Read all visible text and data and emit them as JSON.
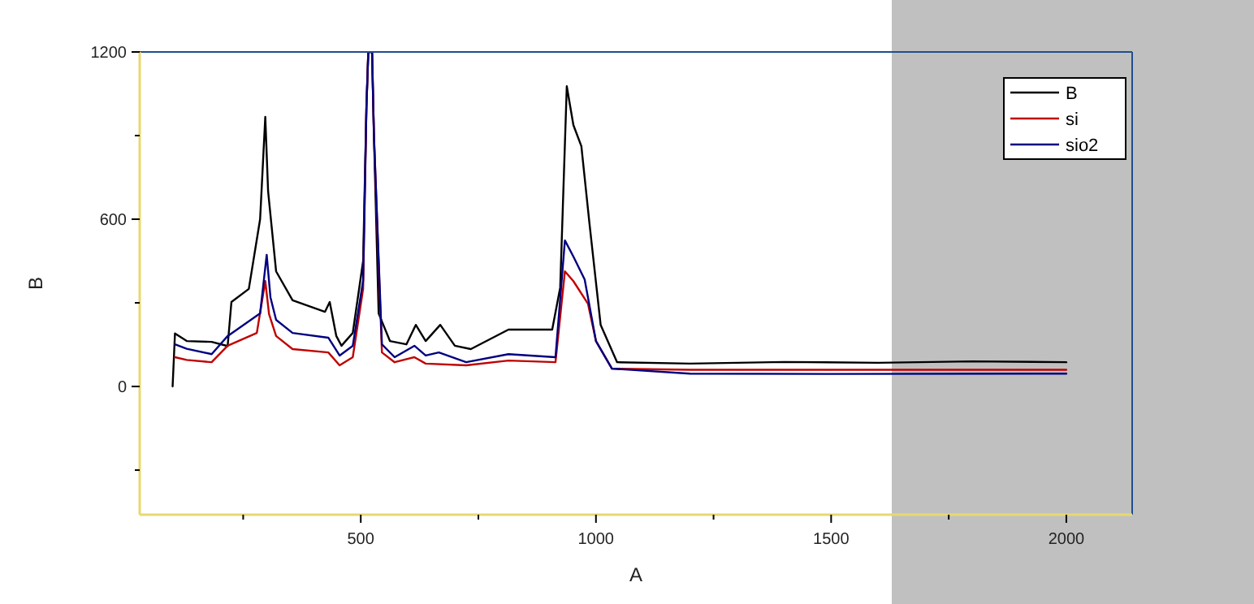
{
  "chart_data": {
    "type": "line",
    "xlabel": "A",
    "ylabel": "B",
    "xlim": [
      30,
      2140
    ],
    "ylim": [
      -460,
      1200
    ],
    "xticks": [
      {
        "value": 250,
        "label": null
      },
      500,
      {
        "value": 750,
        "label": null
      },
      1000,
      {
        "value": 1250,
        "label": null
      },
      1500,
      {
        "value": 1750,
        "label": null
      },
      2000
    ],
    "yticks": [
      {
        "value": -300,
        "label": null
      },
      0,
      {
        "value": 300,
        "label": null
      },
      600,
      {
        "value": 900,
        "label": null
      },
      1200
    ],
    "grid": false,
    "legend": "top right",
    "marker": "none",
    "line_style": "solid",
    "series": [
      {
        "name": "B",
        "color": "#000000",
        "x": [
          100,
          105,
          130,
          183,
          217,
          225,
          262,
          286,
          297,
          303,
          320,
          355,
          424,
          434,
          448,
          459,
          483,
          505,
          512,
          516,
          524,
          528,
          538,
          562,
          597,
          617,
          638,
          669,
          700,
          734,
          814,
          907,
          924,
          938,
          952,
          969,
          986,
          1010,
          1045,
          1200,
          1400,
          1600,
          1800,
          2000
        ],
        "values": [
          0,
          190,
          163,
          160,
          145,
          303,
          350,
          600,
          967,
          700,
          413,
          309,
          268,
          303,
          181,
          146,
          192,
          450,
          1000,
          1200,
          1200,
          900,
          262,
          163,
          151,
          221,
          163,
          221,
          146,
          134,
          204,
          204,
          355,
          1077,
          938,
          862,
          588,
          221,
          87,
          82,
          88,
          85,
          90,
          87
        ]
      },
      {
        "name": "si",
        "color": "#c00000",
        "x": [
          105,
          130,
          183,
          217,
          279,
          297,
          305,
          320,
          355,
          431,
          455,
          483,
          505,
          512,
          516,
          524,
          528,
          545,
          572,
          614,
          638,
          724,
          814,
          914,
          934,
          952,
          983,
          1000,
          1034,
          1200,
          1500,
          2000
        ],
        "values": [
          105,
          95,
          87,
          146,
          192,
          378,
          260,
          181,
          134,
          122,
          76,
          105,
          350,
          1000,
          1200,
          1200,
          900,
          122,
          87,
          105,
          82,
          76,
          93,
          87,
          413,
          378,
          297,
          163,
          64,
          60,
          60,
          60
        ]
      },
      {
        "name": "sio2",
        "color": "#000080",
        "x": [
          105,
          130,
          183,
          217,
          286,
          300,
          308,
          320,
          355,
          431,
          455,
          483,
          505,
          512,
          516,
          524,
          528,
          545,
          572,
          614,
          638,
          666,
          724,
          814,
          914,
          934,
          952,
          976,
          1000,
          1034,
          1200,
          1500,
          2000
        ],
        "values": [
          151,
          135,
          116,
          181,
          262,
          472,
          320,
          239,
          192,
          175,
          111,
          146,
          380,
          1000,
          1200,
          1200,
          900,
          151,
          105,
          146,
          111,
          122,
          87,
          116,
          105,
          524,
          466,
          384,
          163,
          64,
          46,
          45,
          46
        ]
      }
    ]
  }
}
